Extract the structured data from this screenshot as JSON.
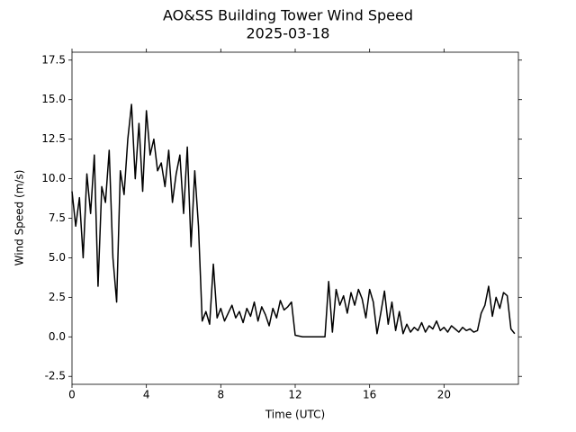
{
  "chart_data": {
    "type": "line",
    "title": "AO&SS Building Tower Wind Speed",
    "subtitle": "2025-03-18",
    "x_label": "Time (UTC)",
    "y_label": "Wind Speed (m/s)",
    "xlim": [
      0,
      24
    ],
    "xticks": [
      0,
      4,
      8,
      12,
      16,
      20
    ],
    "ylim": [
      -3,
      18
    ],
    "yticks": [
      -2.5,
      {
        "value": 0,
        "label": "0.0"
      },
      2.5,
      {
        "value": 5,
        "label": "5.0"
      },
      7.5,
      {
        "value": 10,
        "label": "10.0"
      },
      12.5,
      {
        "value": 15,
        "label": "15.0"
      },
      17.5
    ],
    "color": "#000000",
    "x": [
      0.0,
      0.2,
      0.4,
      0.6,
      0.8,
      1.0,
      1.2,
      1.4,
      1.6,
      1.8,
      2.0,
      2.2,
      2.4,
      2.6,
      2.8,
      3.0,
      3.2,
      3.4,
      3.6,
      3.8,
      4.0,
      4.2,
      4.4,
      4.6,
      4.8,
      5.0,
      5.2,
      5.4,
      5.6,
      5.8,
      6.0,
      6.2,
      6.4,
      6.6,
      6.8,
      7.0,
      7.2,
      7.4,
      7.6,
      7.8,
      8.0,
      8.2,
      8.4,
      8.6,
      8.8,
      9.0,
      9.2,
      9.4,
      9.6,
      9.8,
      10.0,
      10.2,
      10.4,
      10.6,
      10.8,
      11.0,
      11.2,
      11.4,
      11.6,
      11.8,
      12.0,
      12.2,
      12.4,
      12.6,
      12.8,
      13.0,
      13.2,
      13.4,
      13.6,
      13.8,
      14.0,
      14.2,
      14.4,
      14.6,
      14.8,
      15.0,
      15.2,
      15.4,
      15.6,
      15.8,
      16.0,
      16.2,
      16.4,
      16.6,
      16.8,
      17.0,
      17.2,
      17.4,
      17.6,
      17.8,
      18.0,
      18.2,
      18.4,
      18.6,
      18.8,
      19.0,
      19.2,
      19.4,
      19.6,
      19.8,
      20.0,
      20.2,
      20.4,
      20.6,
      20.8,
      21.0,
      21.2,
      21.4,
      21.6,
      21.8,
      22.0,
      22.2,
      22.4,
      22.6,
      22.8,
      23.0,
      23.2,
      23.4,
      23.6,
      23.8
    ],
    "values": [
      9.2,
      7.0,
      8.8,
      5.0,
      10.3,
      7.8,
      11.5,
      3.2,
      9.5,
      8.5,
      11.8,
      5.0,
      2.2,
      10.5,
      9.0,
      12.5,
      14.7,
      10.0,
      13.5,
      9.2,
      14.3,
      11.5,
      12.5,
      10.5,
      11.0,
      9.5,
      11.8,
      8.5,
      10.3,
      11.5,
      7.8,
      12.0,
      5.7,
      10.5,
      7.0,
      1.0,
      1.6,
      0.8,
      4.6,
      1.2,
      1.8,
      1.0,
      1.5,
      2.0,
      1.2,
      1.6,
      0.9,
      1.8,
      1.3,
      2.2,
      1.0,
      1.9,
      1.4,
      0.7,
      1.8,
      1.2,
      2.3,
      1.7,
      1.9,
      2.2,
      0.1,
      0.05,
      0.0,
      0.0,
      0.0,
      0.0,
      0.0,
      0.0,
      0.0,
      3.5,
      0.3,
      3.0,
      2.0,
      2.6,
      1.5,
      2.8,
      2.0,
      3.0,
      2.4,
      1.2,
      3.0,
      2.2,
      0.2,
      1.5,
      2.9,
      0.8,
      2.2,
      0.4,
      1.6,
      0.2,
      0.8,
      0.3,
      0.6,
      0.4,
      0.9,
      0.3,
      0.7,
      0.5,
      1.0,
      0.4,
      0.6,
      0.3,
      0.7,
      0.5,
      0.3,
      0.6,
      0.4,
      0.5,
      0.3,
      0.4,
      1.5,
      2.0,
      3.2,
      1.3,
      2.5,
      1.8,
      2.8,
      2.6,
      0.5,
      0.2
    ]
  }
}
